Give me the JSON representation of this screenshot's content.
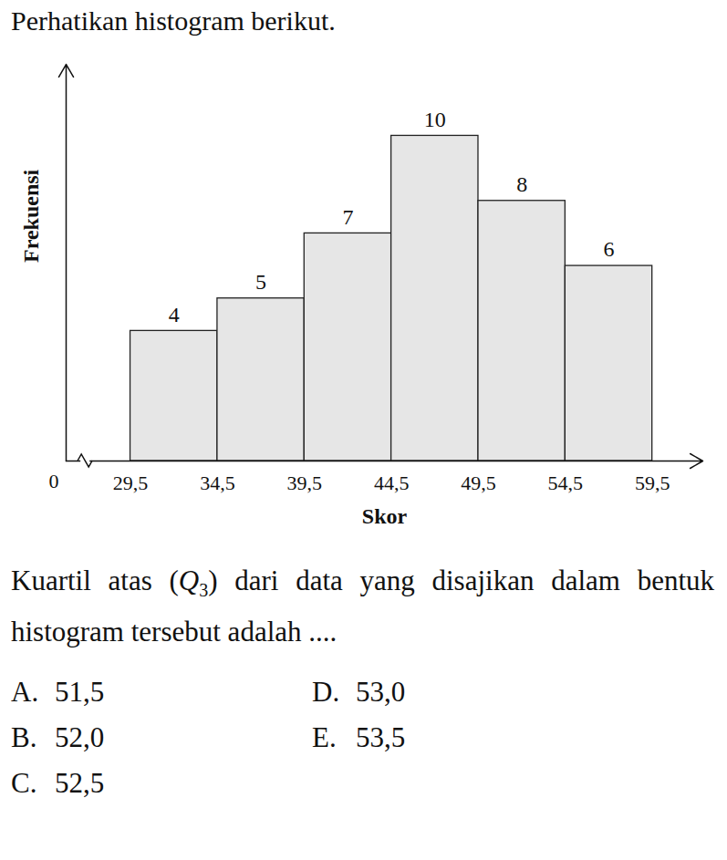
{
  "intro": "Perhatikan histogram berikut.",
  "chart_data": {
    "type": "histogram",
    "bins": [
      29.5,
      34.5,
      39.5,
      44.5,
      49.5,
      54.5,
      59.5
    ],
    "values": [
      4,
      5,
      7,
      10,
      8,
      6
    ],
    "color": "#e6e6e6",
    "xlabel": "Skor",
    "ylabel": "Frekuensi",
    "origin_label": "0",
    "xlim": [
      25.8,
      62.4
    ],
    "ylim": [
      0,
      12.2
    ],
    "xticks": [
      {
        "value": 29.5,
        "label": "29,5"
      },
      {
        "value": 34.5,
        "label": "34,5"
      },
      {
        "value": 39.5,
        "label": "39,5"
      },
      {
        "value": 44.5,
        "label": "44,5"
      },
      {
        "value": 49.5,
        "label": "49,5"
      },
      {
        "value": 54.5,
        "label": "54,5"
      },
      {
        "value": 59.5,
        "label": "59,5"
      }
    ],
    "yticks": [],
    "tick_labels": "x",
    "data_labels": true,
    "grid": false
  },
  "question": {
    "before": "Kuartil atas (",
    "symbol": "Q",
    "subscript": "3",
    "after": ") dari data yang disajikan dalam bentuk histogram tersebut adalah ...."
  },
  "options": [
    {
      "letter": "A.",
      "text": "51,5"
    },
    {
      "letter": "D.",
      "text": "53,0"
    },
    {
      "letter": "B.",
      "text": "52,0"
    },
    {
      "letter": "E.",
      "text": "53,5"
    },
    {
      "letter": "C.",
      "text": "52,5"
    }
  ]
}
